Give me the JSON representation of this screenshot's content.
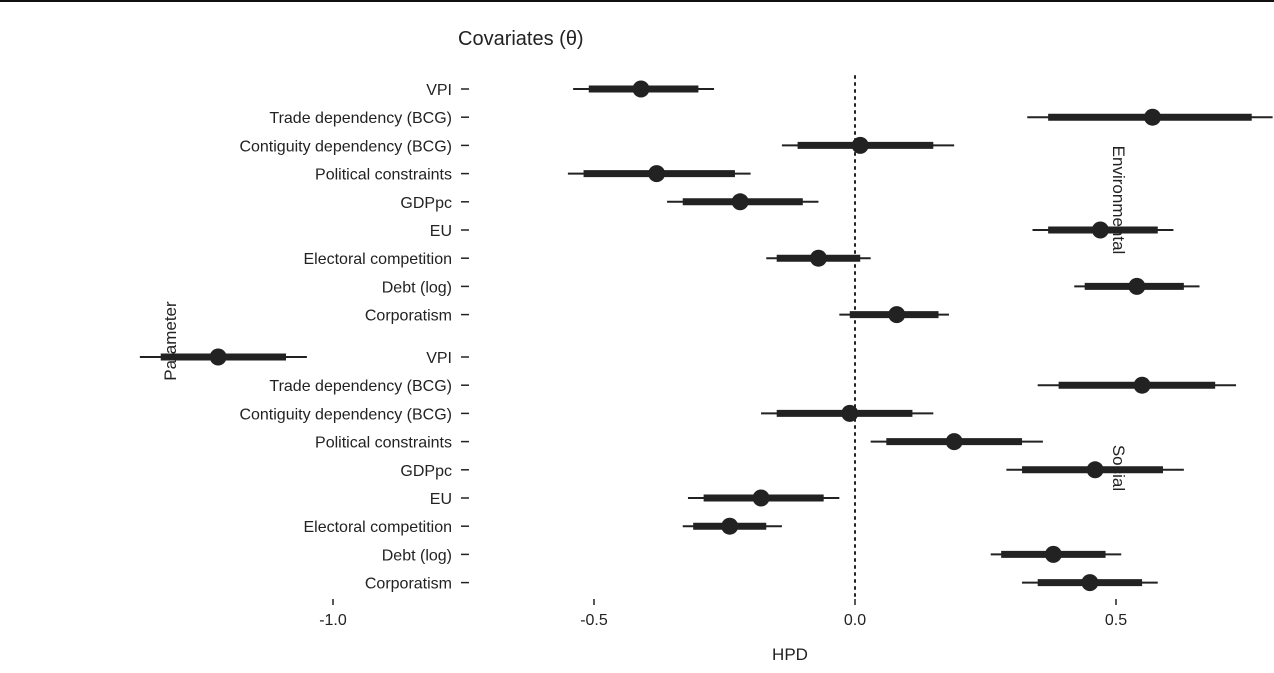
{
  "chart_data": {
    "type": "scatter",
    "title": "Covariates (θ)",
    "xlabel": "HPD",
    "ylabel": "Parameter",
    "xlim": [
      -1.15,
      0.82
    ],
    "x_ticks": [
      -1.0,
      -0.5,
      0.0,
      0.5
    ],
    "x_tick_labels": [
      "-1.0",
      "-0.5",
      "0.0",
      "0.5"
    ],
    "reference_line": 0,
    "grid": false,
    "colors": {
      "point": "#222222",
      "ink": "#222222"
    },
    "panels": [
      {
        "label": "Environmental",
        "rows": [
          {
            "parameter": "VPI",
            "estimate": -0.41,
            "hpd_inner": [
              -0.51,
              -0.3
            ],
            "hpd_outer": [
              -0.54,
              -0.27
            ]
          },
          {
            "parameter": "Trade dependency (BCG)",
            "estimate": 0.57,
            "hpd_inner": [
              0.37,
              0.76
            ],
            "hpd_outer": [
              0.33,
              0.8
            ]
          },
          {
            "parameter": "Contiguity dependency (BCG)",
            "estimate": 0.01,
            "hpd_inner": [
              -0.11,
              0.15
            ],
            "hpd_outer": [
              -0.14,
              0.19
            ]
          },
          {
            "parameter": "Political constraints",
            "estimate": -0.38,
            "hpd_inner": [
              -0.52,
              -0.23
            ],
            "hpd_outer": [
              -0.55,
              -0.2
            ]
          },
          {
            "parameter": "GDPpc",
            "estimate": -0.22,
            "hpd_inner": [
              -0.33,
              -0.1
            ],
            "hpd_outer": [
              -0.36,
              -0.07
            ]
          },
          {
            "parameter": "EU",
            "estimate": 0.47,
            "hpd_inner": [
              0.37,
              0.58
            ],
            "hpd_outer": [
              0.34,
              0.61
            ]
          },
          {
            "parameter": "Electoral competition",
            "estimate": -0.07,
            "hpd_inner": [
              -0.15,
              0.01
            ],
            "hpd_outer": [
              -0.17,
              0.03
            ]
          },
          {
            "parameter": "Debt (log)",
            "estimate": 0.54,
            "hpd_inner": [
              0.44,
              0.63
            ],
            "hpd_outer": [
              0.42,
              0.66
            ]
          },
          {
            "parameter": "Corporatism",
            "estimate": 0.08,
            "hpd_inner": [
              -0.01,
              0.16
            ],
            "hpd_outer": [
              -0.03,
              0.18
            ]
          }
        ]
      },
      {
        "label": "Social",
        "rows": [
          {
            "parameter": "VPI",
            "estimate": -1.22,
            "hpd_inner": [
              -1.33,
              -1.09
            ],
            "hpd_outer": [
              -1.37,
              -1.05
            ]
          },
          {
            "parameter": "Trade dependency (BCG)",
            "estimate": 0.55,
            "hpd_inner": [
              0.39,
              0.69
            ],
            "hpd_outer": [
              0.35,
              0.73
            ]
          },
          {
            "parameter": "Contiguity dependency (BCG)",
            "estimate": -0.01,
            "hpd_inner": [
              -0.15,
              0.11
            ],
            "hpd_outer": [
              -0.18,
              0.15
            ]
          },
          {
            "parameter": "Political constraints",
            "estimate": 0.19,
            "hpd_inner": [
              0.06,
              0.32
            ],
            "hpd_outer": [
              0.03,
              0.36
            ]
          },
          {
            "parameter": "GDPpc",
            "estimate": 0.46,
            "hpd_inner": [
              0.32,
              0.59
            ],
            "hpd_outer": [
              0.29,
              0.63
            ]
          },
          {
            "parameter": "EU",
            "estimate": -0.18,
            "hpd_inner": [
              -0.29,
              -0.06
            ],
            "hpd_outer": [
              -0.32,
              -0.03
            ]
          },
          {
            "parameter": "Electoral competition",
            "estimate": -0.24,
            "hpd_inner": [
              -0.31,
              -0.17
            ],
            "hpd_outer": [
              -0.33,
              -0.14
            ]
          },
          {
            "parameter": "Debt (log)",
            "estimate": 0.38,
            "hpd_inner": [
              0.28,
              0.48
            ],
            "hpd_outer": [
              0.26,
              0.51
            ]
          },
          {
            "parameter": "Corporatism",
            "estimate": 0.45,
            "hpd_inner": [
              0.35,
              0.55
            ],
            "hpd_outer": [
              0.32,
              0.58
            ]
          }
        ]
      }
    ]
  }
}
